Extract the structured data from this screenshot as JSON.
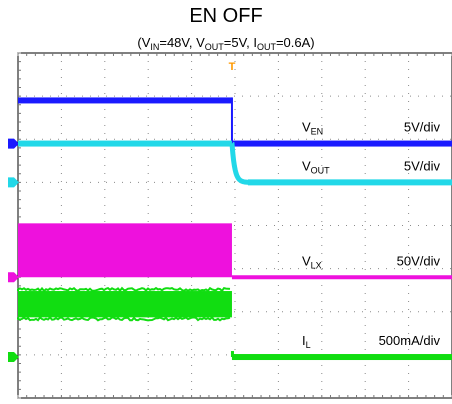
{
  "chart_data": {
    "type": "line",
    "title": "EN OFF",
    "conditions": {
      "v_in_label": "V",
      "v_in_sub": "IN",
      "v_in_value": "=48V, ",
      "v_out_label": "V",
      "v_out_sub": "OUT",
      "v_out_value": "=5V, ",
      "i_out_label": "I",
      "i_out_sub": "OUT",
      "i_out_value": "=0.6A"
    },
    "time_axis": {
      "divisions": 10,
      "event_division": 4.93
    },
    "vertical_axis": {
      "divisions": 8
    },
    "trigger_marker": "T",
    "series": [
      {
        "name": "V",
        "sub": "EN",
        "scale": "5V/div",
        "color": "#1a1aff",
        "marker_div": 5.9,
        "before_div": 6.9,
        "after_div": 5.9,
        "style": "step"
      },
      {
        "name": "V",
        "sub": "OUT",
        "scale": "5V/div",
        "color": "#22d8e8",
        "marker_div": 5.0,
        "before_div": 5.9,
        "after_div": 5.0,
        "style": "decay"
      },
      {
        "name": "V",
        "sub": "LX",
        "scale": "50V/div",
        "color": "#ee11dd",
        "marker_div": 2.8,
        "before_low_div": 2.8,
        "before_high_div": 4.05,
        "after_div": 2.8,
        "style": "switching"
      },
      {
        "name": "I",
        "sub": "L",
        "scale": "500mA/div",
        "color": "#11dd11",
        "marker_div": 0.95,
        "before_low_div": 1.8,
        "before_high_div": 2.55,
        "after_div": 0.95,
        "style": "ripple"
      }
    ]
  }
}
